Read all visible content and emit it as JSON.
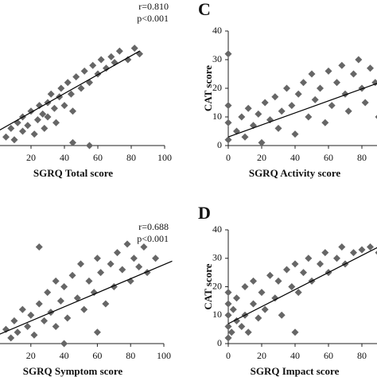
{
  "chart_data": [
    {
      "type": "scatter",
      "xlabel": "SGRQ Total score",
      "annotations": [
        "r=0.810",
        "p<0.001"
      ],
      "color": "#666666",
      "xlim": [
        0,
        100
      ],
      "xticks": [
        20,
        40,
        60,
        80,
        100
      ],
      "ylim": [
        0,
        40
      ],
      "x": [
        5,
        8,
        10,
        12,
        15,
        15,
        18,
        20,
        22,
        24,
        25,
        27,
        28,
        30,
        30,
        32,
        34,
        35,
        37,
        38,
        40,
        42,
        44,
        45,
        47,
        50,
        52,
        55,
        57,
        60,
        62,
        65,
        68,
        70,
        73,
        78,
        82,
        85,
        55,
        45
      ],
      "values": [
        3,
        6,
        2,
        8,
        5,
        10,
        7,
        12,
        4,
        9,
        14,
        11,
        6,
        15,
        10,
        18,
        13,
        8,
        17,
        20,
        14,
        22,
        18,
        12,
        24,
        20,
        26,
        22,
        28,
        25,
        30,
        27,
        31,
        29,
        33,
        30,
        34,
        32,
        0,
        1
      ],
      "fit": {
        "x": [
          0,
          85
        ],
        "y": [
          5,
          33
        ]
      }
    },
    {
      "type": "scatter",
      "panel_label": "C",
      "xlabel": "SGRQ Activity score",
      "ylabel": "CAT score",
      "color": "#666666",
      "xlim": [
        0,
        100
      ],
      "xticks": [
        0,
        20,
        40,
        60,
        80
      ],
      "ylim": [
        0,
        40
      ],
      "yticks": [
        0,
        10,
        20,
        30,
        40
      ],
      "x": [
        0,
        0,
        0,
        0,
        5,
        8,
        10,
        12,
        15,
        18,
        20,
        22,
        25,
        28,
        30,
        32,
        35,
        38,
        40,
        42,
        45,
        48,
        50,
        52,
        55,
        58,
        60,
        62,
        65,
        68,
        70,
        72,
        75,
        78,
        80,
        82,
        85,
        88,
        90,
        92
      ],
      "values": [
        32,
        14,
        8,
        2,
        5,
        10,
        3,
        13,
        7,
        11,
        1,
        15,
        9,
        17,
        6,
        12,
        20,
        14,
        4,
        18,
        22,
        10,
        25,
        16,
        20,
        8,
        26,
        14,
        22,
        28,
        18,
        12,
        25,
        30,
        20,
        15,
        27,
        22,
        10,
        25
      ],
      "fit": {
        "x": [
          0,
          100
        ],
        "y": [
          3,
          24
        ]
      }
    },
    {
      "type": "scatter",
      "xlabel": "SGRQ Symptom score",
      "annotations": [
        "r=0.688",
        "p<0.001"
      ],
      "color": "#666666",
      "xlim": [
        0,
        100
      ],
      "xticks": [
        20,
        40,
        60,
        80,
        100
      ],
      "ylim": [
        0,
        40
      ],
      "x": [
        5,
        8,
        10,
        12,
        15,
        18,
        20,
        22,
        25,
        28,
        30,
        32,
        35,
        35,
        38,
        40,
        42,
        45,
        48,
        50,
        52,
        55,
        58,
        60,
        62,
        65,
        68,
        70,
        72,
        75,
        78,
        80,
        82,
        85,
        88,
        90,
        95,
        25,
        40,
        60
      ],
      "values": [
        5,
        2,
        8,
        4,
        12,
        6,
        10,
        3,
        14,
        8,
        18,
        11,
        6,
        22,
        15,
        20,
        9,
        24,
        16,
        28,
        12,
        22,
        18,
        30,
        25,
        14,
        28,
        20,
        32,
        26,
        35,
        22,
        30,
        27,
        34,
        25,
        30,
        34,
        0,
        4
      ],
      "fit": {
        "x": [
          0,
          105
        ],
        "y": [
          3,
          29
        ]
      }
    },
    {
      "type": "scatter",
      "panel_label": "D",
      "xlabel": "SGRQ Impact score",
      "ylabel": "CAT score",
      "color": "#666666",
      "xlim": [
        0,
        100
      ],
      "xticks": [
        0,
        20,
        40,
        60,
        80
      ],
      "ylim": [
        0,
        40
      ],
      "yticks": [
        0,
        10,
        20,
        30,
        40
      ],
      "x": [
        0,
        0,
        0,
        0,
        0,
        2,
        3,
        5,
        5,
        8,
        10,
        10,
        12,
        15,
        15,
        18,
        20,
        22,
        25,
        28,
        30,
        32,
        35,
        38,
        40,
        40,
        42,
        45,
        48,
        50,
        55,
        58,
        60,
        65,
        68,
        70,
        75,
        80,
        85,
        90
      ],
      "values": [
        2,
        6,
        10,
        14,
        18,
        4,
        12,
        8,
        16,
        6,
        10,
        20,
        4,
        14,
        22,
        9,
        18,
        12,
        24,
        16,
        22,
        10,
        26,
        20,
        28,
        4,
        18,
        25,
        30,
        22,
        28,
        32,
        25,
        30,
        34,
        28,
        32,
        33,
        34,
        32
      ],
      "fit": {
        "x": [
          0,
          90
        ],
        "y": [
          7,
          34
        ]
      }
    }
  ]
}
